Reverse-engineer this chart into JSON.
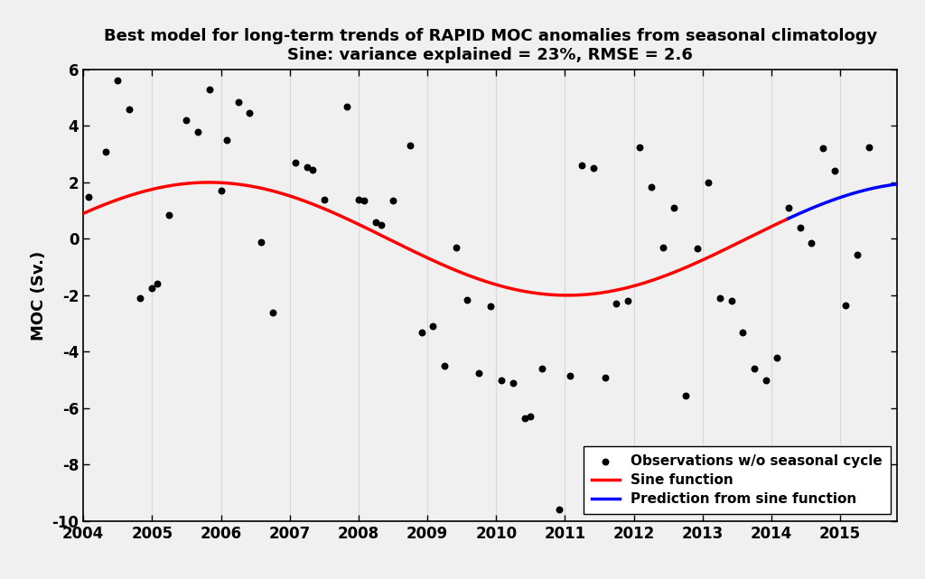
{
  "title_line1": "Best model for long-term trends of RAPID MOC anomalies from seasonal climatology",
  "title_line2": "Sine: variance explained = 23%, RMSE = 2.6",
  "ylabel": "MOC (Sv.)",
  "xlim": [
    2004.0,
    2015.83
  ],
  "ylim": [
    -10,
    6
  ],
  "yticks": [
    -10,
    -8,
    -6,
    -4,
    -2,
    0,
    2,
    4,
    6
  ],
  "xticks": [
    2004,
    2005,
    2006,
    2007,
    2008,
    2009,
    2010,
    2011,
    2012,
    2013,
    2014,
    2015
  ],
  "sine_amplitude": 2.0,
  "sine_period": 10.41,
  "sine_start": 2004.0,
  "sine_end": 2014.25,
  "pred_start": 2014.25,
  "pred_end": 2015.83,
  "sine_color": "#FF0000",
  "pred_color": "#0000FF",
  "obs_color": "#000000",
  "background_color": "#F0F0F0",
  "plot_bg_color": "#F0F0F0",
  "grid_color": "#D8D8D8",
  "obs_data": [
    [
      2004.08,
      1.5
    ],
    [
      2004.33,
      3.1
    ],
    [
      2004.5,
      5.6
    ],
    [
      2004.67,
      4.6
    ],
    [
      2004.83,
      -2.1
    ],
    [
      2005.0,
      -1.75
    ],
    [
      2005.08,
      -1.6
    ],
    [
      2005.25,
      0.85
    ],
    [
      2005.5,
      4.2
    ],
    [
      2005.67,
      3.8
    ],
    [
      2005.83,
      5.3
    ],
    [
      2006.0,
      1.7
    ],
    [
      2006.08,
      3.5
    ],
    [
      2006.25,
      4.85
    ],
    [
      2006.42,
      4.45
    ],
    [
      2006.58,
      -0.1
    ],
    [
      2006.75,
      -2.6
    ],
    [
      2007.08,
      2.7
    ],
    [
      2007.25,
      2.55
    ],
    [
      2007.33,
      2.45
    ],
    [
      2007.5,
      1.4
    ],
    [
      2007.83,
      4.7
    ],
    [
      2008.0,
      1.4
    ],
    [
      2008.08,
      1.35
    ],
    [
      2008.25,
      0.6
    ],
    [
      2008.33,
      0.5
    ],
    [
      2008.5,
      1.35
    ],
    [
      2008.75,
      3.3
    ],
    [
      2008.92,
      -3.3
    ],
    [
      2009.08,
      -3.1
    ],
    [
      2009.25,
      -4.5
    ],
    [
      2009.42,
      -0.3
    ],
    [
      2009.58,
      -2.15
    ],
    [
      2009.75,
      -4.75
    ],
    [
      2009.92,
      -2.4
    ],
    [
      2010.08,
      -5.0
    ],
    [
      2010.25,
      -5.1
    ],
    [
      2010.42,
      -6.35
    ],
    [
      2010.5,
      -6.3
    ],
    [
      2010.67,
      -4.6
    ],
    [
      2010.92,
      -9.6
    ],
    [
      2011.08,
      -4.85
    ],
    [
      2011.25,
      2.6
    ],
    [
      2011.42,
      2.5
    ],
    [
      2011.58,
      -4.9
    ],
    [
      2011.75,
      -2.3
    ],
    [
      2011.92,
      -2.2
    ],
    [
      2012.08,
      3.25
    ],
    [
      2012.25,
      1.85
    ],
    [
      2012.42,
      -0.3
    ],
    [
      2012.58,
      1.1
    ],
    [
      2012.75,
      -5.55
    ],
    [
      2012.92,
      -0.35
    ],
    [
      2013.08,
      2.0
    ],
    [
      2013.25,
      -2.1
    ],
    [
      2013.42,
      -2.2
    ],
    [
      2013.58,
      -3.3
    ],
    [
      2013.75,
      -4.6
    ],
    [
      2013.92,
      -5.0
    ],
    [
      2014.08,
      -4.2
    ],
    [
      2014.25,
      1.1
    ],
    [
      2014.42,
      0.4
    ],
    [
      2014.58,
      -0.15
    ],
    [
      2014.75,
      3.2
    ],
    [
      2014.92,
      2.4
    ],
    [
      2015.08,
      -2.35
    ],
    [
      2015.25,
      -0.55
    ],
    [
      2015.42,
      3.25
    ]
  ],
  "legend_loc": "lower right",
  "title_fontsize": 13,
  "axis_fontsize": 13,
  "tick_fontsize": 12
}
